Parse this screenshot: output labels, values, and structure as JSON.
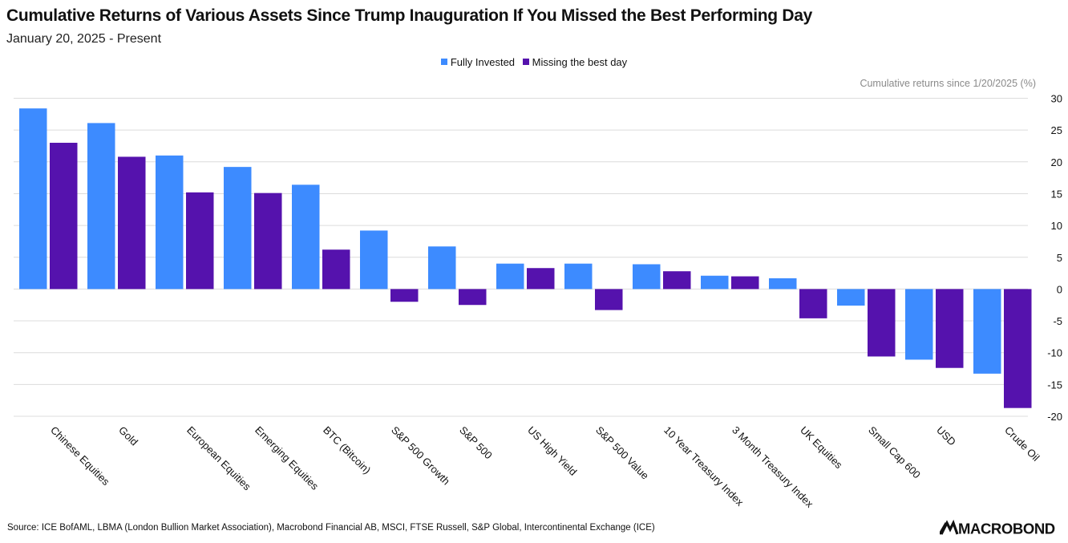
{
  "header": {
    "title": "Cumulative Returns of Various Assets Since Trump Inauguration If You Missed the Best Performing Day",
    "subtitle": "January 20, 2025 - Present"
  },
  "footer": {
    "source": "Source: ICE BofAML, LBMA (London Bullion Market Association), Macrobond Financial AB, MSCI, FTSE Russell, S&P Global, Intercontinental Exchange (ICE)",
    "logo_text": "MACROBOND",
    "logo_icon": "macrobond-logo-icon"
  },
  "colors": {
    "fully_invested": "#3d8bff",
    "missing_best_day": "#5512ad",
    "grid": "#dcdcdc",
    "axis_text": "#111111",
    "unit_text": "#8a8a8a"
  },
  "chart_data": {
    "type": "bar",
    "title": "Cumulative Returns of Various Assets Since Trump Inauguration If You Missed the Best Performing Day",
    "subtitle": "January 20, 2025 - Present",
    "ylabel": "Cumulative returns since 1/20/2025 (%)",
    "xlabel": "",
    "ylim": [
      -20,
      30
    ],
    "yticks": [
      30,
      25,
      20,
      15,
      10,
      5,
      0,
      -5,
      -10,
      -15,
      -20
    ],
    "grid": true,
    "y_axis_position": "right",
    "legend_position": "top-center",
    "categories": [
      "Chinese Equities",
      "Gold",
      "European Equities",
      "Emerging Equities",
      "BTC (Bitcoin)",
      "S&P 500 Growth",
      "S&P 500",
      "US High Yield",
      "S&P 500 Value",
      "10 Year Treasury Index",
      "3 Month Treasury Index",
      "UK Equities",
      "Small Cap 600",
      "USD",
      "Crude Oil"
    ],
    "series": [
      {
        "name": "Fully Invested",
        "color": "#3d8bff",
        "values": [
          28.4,
          26.1,
          21.0,
          19.2,
          16.4,
          9.2,
          6.7,
          4.0,
          4.0,
          3.9,
          2.1,
          1.7,
          -2.6,
          -11.1,
          -13.3
        ]
      },
      {
        "name": "Missing the best day",
        "color": "#5512ad",
        "values": [
          23.0,
          20.8,
          15.2,
          15.1,
          6.2,
          -2.0,
          -2.5,
          3.3,
          -3.3,
          2.8,
          2.0,
          -4.6,
          -10.6,
          -12.4,
          -18.7
        ]
      }
    ]
  }
}
